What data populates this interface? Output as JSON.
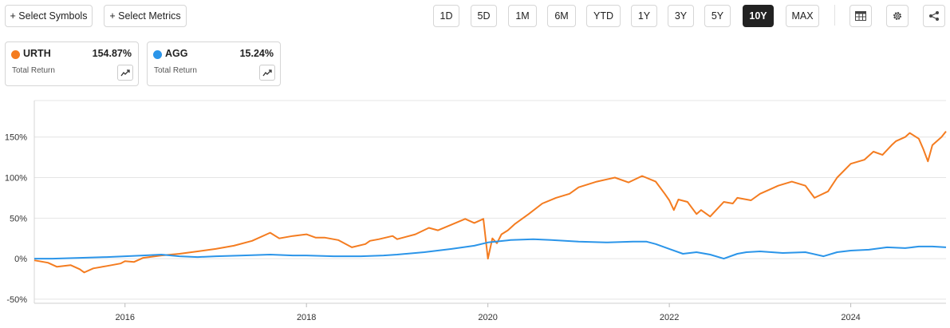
{
  "toolbar": {
    "select_symbols": "+ Select Symbols",
    "select_metrics": "+ Select Metrics",
    "ranges": [
      "1D",
      "5D",
      "1M",
      "6M",
      "YTD",
      "1Y",
      "3Y",
      "5Y",
      "10Y",
      "MAX"
    ],
    "active_range": "10Y",
    "icons": [
      "table-icon",
      "gear-icon",
      "share-icon"
    ]
  },
  "legend": [
    {
      "symbol": "URTH",
      "value": "154.87%",
      "metric": "Total Return",
      "color": "#f47c20"
    },
    {
      "symbol": "AGG",
      "value": "15.24%",
      "metric": "Total Return",
      "color": "#2b95e9"
    }
  ],
  "chart_data": {
    "type": "line",
    "ytick_labels": [
      "150%",
      "100%",
      "50%",
      "0%",
      "-50%"
    ],
    "yticks": [
      150,
      100,
      50,
      0,
      -50
    ],
    "xtick_labels": [
      "2016",
      "2018",
      "2020",
      "2022",
      "2024"
    ],
    "xticks": [
      2016,
      2018,
      2020,
      2022,
      2024
    ],
    "ylim": [
      -55,
      195
    ],
    "xlim": [
      2015.0,
      2025.05
    ],
    "grid": "horizontal",
    "series": [
      {
        "name": "URTH",
        "color": "#f47c20",
        "x": [
          2015.0,
          2015.15,
          2015.25,
          2015.4,
          2015.5,
          2015.55,
          2015.65,
          2015.8,
          2015.95,
          2016.0,
          2016.1,
          2016.2,
          2016.4,
          2016.6,
          2016.8,
          2017.0,
          2017.2,
          2017.4,
          2017.6,
          2017.7,
          2017.85,
          2018.0,
          2018.1,
          2018.2,
          2018.35,
          2018.5,
          2018.65,
          2018.7,
          2018.8,
          2018.95,
          2019.0,
          2019.2,
          2019.35,
          2019.45,
          2019.6,
          2019.75,
          2019.85,
          2019.95,
          2020.0,
          2020.05,
          2020.1,
          2020.15,
          2020.22,
          2020.3,
          2020.45,
          2020.6,
          2020.75,
          2020.9,
          2021.0,
          2021.2,
          2021.4,
          2021.55,
          2021.7,
          2021.85,
          2021.95,
          2022.0,
          2022.05,
          2022.1,
          2022.2,
          2022.3,
          2022.35,
          2022.45,
          2022.6,
          2022.7,
          2022.75,
          2022.9,
          2023.0,
          2023.1,
          2023.2,
          2023.35,
          2023.5,
          2023.6,
          2023.75,
          2023.85,
          2024.0,
          2024.15,
          2024.25,
          2024.35,
          2024.45,
          2024.5,
          2024.6,
          2024.65,
          2024.75,
          2024.8,
          2024.85,
          2024.9,
          2025.0,
          2025.05
        ],
        "values": [
          -2,
          -5,
          -10,
          -8,
          -13,
          -17,
          -12,
          -9,
          -6,
          -3,
          -4,
          1,
          4,
          6,
          9,
          12,
          16,
          22,
          32,
          25,
          28,
          30,
          26,
          26,
          23,
          14,
          18,
          22,
          24,
          28,
          24,
          30,
          38,
          35,
          42,
          49,
          44,
          49,
          0,
          25,
          19,
          30,
          35,
          43,
          55,
          68,
          75,
          80,
          88,
          95,
          100,
          94,
          102,
          95,
          80,
          72,
          60,
          73,
          70,
          55,
          60,
          52,
          70,
          68,
          75,
          72,
          80,
          85,
          90,
          95,
          90,
          75,
          83,
          100,
          117,
          122,
          132,
          128,
          140,
          145,
          150,
          155,
          148,
          135,
          120,
          140,
          150,
          157
        ]
      },
      {
        "name": "AGG",
        "color": "#2b95e9",
        "x": [
          2015.0,
          2015.2,
          2015.5,
          2015.8,
          2016.0,
          2016.2,
          2016.4,
          2016.6,
          2016.8,
          2017.0,
          2017.3,
          2017.6,
          2017.85,
          2018.0,
          2018.3,
          2018.6,
          2018.85,
          2019.0,
          2019.3,
          2019.6,
          2019.85,
          2020.0,
          2020.25,
          2020.5,
          2020.7,
          2020.85,
          2021.0,
          2021.3,
          2021.6,
          2021.75,
          2021.85,
          2022.0,
          2022.15,
          2022.3,
          2022.45,
          2022.6,
          2022.75,
          2022.85,
          2023.0,
          2023.25,
          2023.5,
          2023.7,
          2023.85,
          2024.0,
          2024.2,
          2024.4,
          2024.6,
          2024.75,
          2024.9,
          2025.05
        ],
        "values": [
          0,
          0,
          1,
          2,
          3,
          4,
          5,
          3,
          2,
          3,
          4,
          5,
          4,
          4,
          3,
          3,
          4,
          5,
          8,
          12,
          16,
          20,
          23,
          24,
          23,
          22,
          21,
          20,
          21,
          21,
          18,
          12,
          6,
          8,
          5,
          0,
          6,
          8,
          9,
          7,
          8,
          3,
          8,
          10,
          11,
          14,
          13,
          15,
          15,
          14
        ]
      }
    ]
  }
}
